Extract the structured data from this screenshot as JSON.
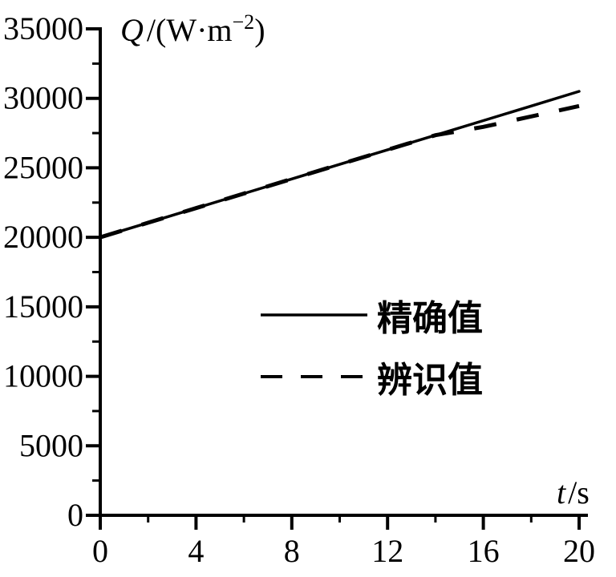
{
  "figure": {
    "background_color": "#ffffff",
    "ink_color": "#000000",
    "style": "scanned black-and-white line plot"
  },
  "axis_titles": {
    "y_full": "Q/(W·m⁻²)",
    "y_symbol": "Q",
    "y_unit_open": "/(W·m",
    "y_exponent": "−2",
    "y_unit_close": ")",
    "x_full": "t/s",
    "x_symbol": "t",
    "x_unit": "/s"
  },
  "legend": {
    "items": [
      {
        "label": "精确值",
        "line_style": "solid"
      },
      {
        "label": "辨识值",
        "line_style": "dashed"
      }
    ]
  },
  "chart_data": {
    "type": "line",
    "title": "",
    "xlabel": "t/s",
    "ylabel": "Q/(W·m⁻²)",
    "xlim": [
      0,
      20
    ],
    "ylim": [
      0,
      35000
    ],
    "x_major_ticks": [
      0,
      4,
      8,
      12,
      16,
      20
    ],
    "x_minor_ticks": [
      2,
      6,
      10,
      14,
      18
    ],
    "y_major_ticks": [
      0,
      5000,
      10000,
      15000,
      20000,
      25000,
      30000,
      35000
    ],
    "y_minor_ticks": [
      2500,
      7500,
      12500,
      17500,
      22500,
      27500,
      32500
    ],
    "grid": false,
    "legend_position": "inside-center-right",
    "x": [
      0,
      2,
      4,
      6,
      8,
      10,
      12,
      14,
      16,
      18,
      20
    ],
    "series": [
      {
        "name": "精确值",
        "style": "solid",
        "values": [
          20000,
          21050,
          22100,
          23150,
          24200,
          25250,
          26300,
          27350,
          28400,
          29450,
          30500
        ]
      },
      {
        "name": "辨识值",
        "style": "dashed",
        "values": [
          20000,
          21050,
          22100,
          23150,
          24200,
          25250,
          26300,
          27350,
          27950,
          28700,
          29450
        ]
      }
    ]
  }
}
